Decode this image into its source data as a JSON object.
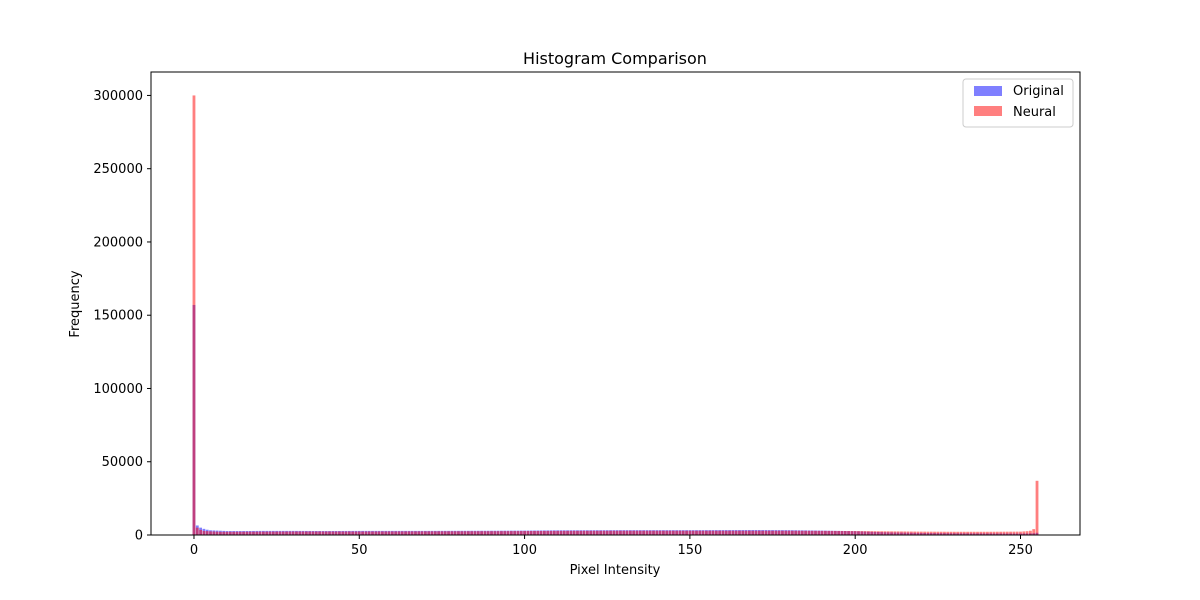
{
  "chart_data": {
    "type": "bar",
    "title": "Histogram Comparison",
    "xlabel": "Pixel Intensity",
    "ylabel": "Frequency",
    "xlim": [
      -13,
      268
    ],
    "ylim": [
      0,
      316000
    ],
    "xticks": [
      0,
      50,
      100,
      150,
      200,
      250
    ],
    "yticks": [
      0,
      50000,
      100000,
      150000,
      200000,
      250000,
      300000
    ],
    "legend_position": "top-right",
    "bin_width": 1,
    "series": [
      {
        "name": "Original",
        "color": "#0000ff",
        "opacity": 0.5,
        "anchors": [
          [
            0,
            157000
          ],
          [
            1,
            6500
          ],
          [
            2,
            5000
          ],
          [
            3,
            4200
          ],
          [
            4,
            3600
          ],
          [
            5,
            3200
          ],
          [
            8,
            2900
          ],
          [
            10,
            2700
          ],
          [
            15,
            2700
          ],
          [
            20,
            2800
          ],
          [
            30,
            2800
          ],
          [
            40,
            2700
          ],
          [
            50,
            2800
          ],
          [
            70,
            2800
          ],
          [
            90,
            2900
          ],
          [
            100,
            3000
          ],
          [
            110,
            3200
          ],
          [
            130,
            3300
          ],
          [
            150,
            3300
          ],
          [
            170,
            3400
          ],
          [
            180,
            3300
          ],
          [
            190,
            3000
          ],
          [
            200,
            2600
          ],
          [
            205,
            2200
          ],
          [
            210,
            1800
          ],
          [
            220,
            1400
          ],
          [
            230,
            1200
          ],
          [
            240,
            1100
          ],
          [
            250,
            1000
          ],
          [
            253,
            1100
          ],
          [
            254,
            1200
          ],
          [
            255,
            1500
          ]
        ]
      },
      {
        "name": "Neural",
        "color": "#ff0000",
        "opacity": 0.5,
        "anchors": [
          [
            0,
            300000
          ],
          [
            1,
            5000
          ],
          [
            2,
            3500
          ],
          [
            3,
            2800
          ],
          [
            5,
            2500
          ],
          [
            8,
            2200
          ],
          [
            10,
            2200
          ],
          [
            20,
            2300
          ],
          [
            30,
            2400
          ],
          [
            40,
            2400
          ],
          [
            50,
            2400
          ],
          [
            70,
            2500
          ],
          [
            90,
            2600
          ],
          [
            100,
            2700
          ],
          [
            110,
            2800
          ],
          [
            130,
            2900
          ],
          [
            150,
            2900
          ],
          [
            170,
            2900
          ],
          [
            180,
            2900
          ],
          [
            190,
            2800
          ],
          [
            200,
            2700
          ],
          [
            210,
            2500
          ],
          [
            220,
            2300
          ],
          [
            230,
            2200
          ],
          [
            240,
            2200
          ],
          [
            250,
            2300
          ],
          [
            252,
            2600
          ],
          [
            253,
            2900
          ],
          [
            254,
            4000
          ],
          [
            255,
            37000
          ]
        ]
      }
    ]
  }
}
